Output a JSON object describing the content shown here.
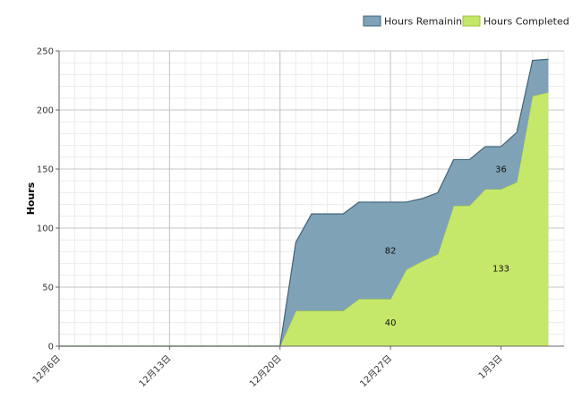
{
  "chart_data": {
    "type": "area",
    "ylabel": "Hours",
    "ylim": [
      0,
      250
    ],
    "yticks": [
      0,
      50,
      100,
      150,
      200,
      250
    ],
    "xlim": [
      "2018-12-06",
      "2019-01-07"
    ],
    "xticks": [
      {
        "date": "2018-12-06",
        "label": "12月6日"
      },
      {
        "date": "2018-12-13",
        "label": "12月13日"
      },
      {
        "date": "2018-12-20",
        "label": "12月20日"
      },
      {
        "date": "2018-12-27",
        "label": "12月27日"
      },
      {
        "date": "2019-01-03",
        "label": "1月3日"
      }
    ],
    "grid": true,
    "legend_position": "top-right",
    "stacked": true,
    "dates": [
      "2018-12-06",
      "2018-12-20",
      "2018-12-21",
      "2018-12-22",
      "2018-12-23",
      "2018-12-24",
      "2018-12-25",
      "2018-12-26",
      "2018-12-27",
      "2018-12-28",
      "2018-12-29",
      "2018-12-30",
      "2018-12-31",
      "2019-01-01",
      "2019-01-02",
      "2019-01-03",
      "2019-01-04",
      "2019-01-05",
      "2019-01-06"
    ],
    "series": [
      {
        "name": "Hours Completed",
        "color": "#c6e86a",
        "line_color": "#9dc23c",
        "values": [
          0,
          0,
          30,
          30,
          30,
          30,
          40,
          40,
          40,
          65,
          72,
          78,
          119,
          119,
          133,
          133,
          139,
          212,
          215
        ]
      },
      {
        "name": "Hours Remaining",
        "color": "#7fa2b6",
        "line_color": "#3d6479",
        "values": [
          0,
          0,
          58,
          82,
          82,
          82,
          82,
          82,
          82,
          57,
          53,
          52,
          39,
          39,
          36,
          36,
          42,
          30,
          28
        ]
      }
    ],
    "annotations": [
      {
        "text": "82",
        "date": "2018-12-27",
        "y": 81
      },
      {
        "text": "40",
        "date": "2018-12-27",
        "y": 20
      },
      {
        "text": "36",
        "date": "2019-01-03",
        "y": 150
      },
      {
        "text": "133",
        "date": "2019-01-03",
        "y": 66
      }
    ]
  }
}
